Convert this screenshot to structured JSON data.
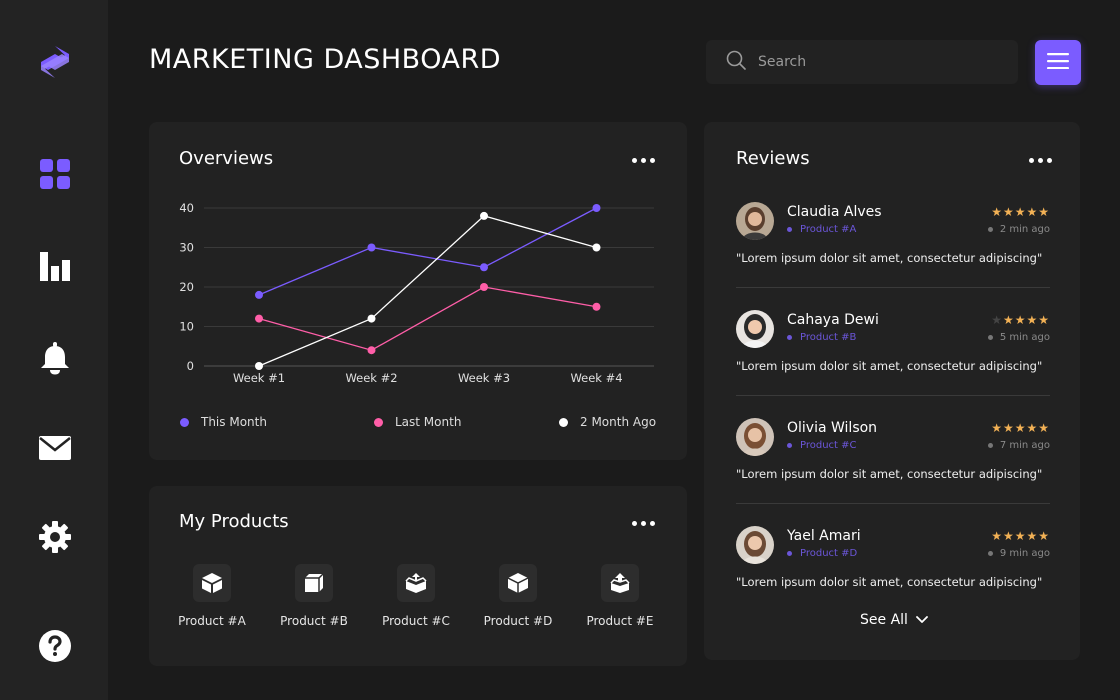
{
  "header": {
    "title": "MARKETING DASHBOARD"
  },
  "search": {
    "placeholder": "Search",
    "value": ""
  },
  "sidebar": {
    "items": [
      {
        "icon": "logo-icon"
      },
      {
        "icon": "dashboard-grid-icon",
        "active": true
      },
      {
        "icon": "bar-chart-icon"
      },
      {
        "icon": "bell-icon"
      },
      {
        "icon": "mail-icon"
      },
      {
        "icon": "gear-icon"
      },
      {
        "icon": "help-icon"
      }
    ]
  },
  "colors": {
    "accent": "#7b5cff",
    "pink": "#ff5ea8",
    "white": "#ffffff",
    "star": "#f2b155"
  },
  "overview": {
    "title": "Overviews",
    "chart_data": {
      "type": "line",
      "categories": [
        "Week #1",
        "Week #2",
        "Week #3",
        "Week #4"
      ],
      "ylim": [
        0,
        40
      ],
      "yticks": [
        "0",
        "10",
        "20",
        "30",
        "40"
      ],
      "series": [
        {
          "name": "This Month",
          "values": [
            18,
            30,
            25,
            40
          ],
          "color": "#7b5cff"
        },
        {
          "name": "Last Month",
          "values": [
            12,
            4,
            20,
            15
          ],
          "color": "#ff5ea8"
        },
        {
          "name": "2 Month Ago",
          "values": [
            0,
            12,
            38,
            30
          ],
          "color": "#ffffff"
        }
      ],
      "legend": "bottom",
      "grid": true
    }
  },
  "products": {
    "title": "My Products",
    "items": [
      {
        "label": "Product #A",
        "icon": "box-icon"
      },
      {
        "label": "Product #B",
        "icon": "box-icon"
      },
      {
        "label": "Product #C",
        "icon": "open-box-icon"
      },
      {
        "label": "Product #D",
        "icon": "box-icon"
      },
      {
        "label": "Product #E",
        "icon": "box-arrow-icon"
      }
    ]
  },
  "reviews": {
    "title": "Reviews",
    "items": [
      {
        "name": "Claudia Alves",
        "product": "Product #A",
        "rating": 5,
        "time": "2 min ago",
        "text": "\"Lorem ipsum dolor sit amet, consectetur adipiscing\""
      },
      {
        "name": "Cahaya Dewi",
        "product": "Product #B",
        "rating": 4,
        "time": "5 min ago",
        "text": "\"Lorem ipsum dolor sit amet, consectetur adipiscing\""
      },
      {
        "name": "Olivia Wilson",
        "product": "Product #C",
        "rating": 5,
        "time": "7 min ago",
        "text": "\"Lorem ipsum dolor sit amet, consectetur adipiscing\""
      },
      {
        "name": "Yael Amari",
        "product": "Product #D",
        "rating": 5,
        "time": "9 min ago",
        "text": "\"Lorem ipsum dolor sit amet, consectetur adipiscing\""
      }
    ],
    "see_all": "See All"
  }
}
